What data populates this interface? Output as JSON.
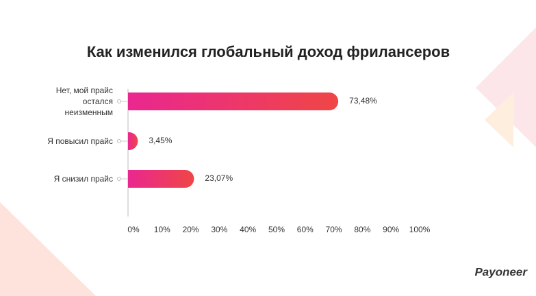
{
  "chart_data": {
    "type": "hbar",
    "title": "Как изменился глобальный доход фрилансеров",
    "categories": [
      "Нет, мой прайс остался неизменным",
      "Я повысил прайс",
      "Я снизил прайс"
    ],
    "values": [
      73.48,
      3.45,
      23.07
    ],
    "value_labels": [
      "73,48%",
      "3,45%",
      "23,07%"
    ],
    "colors": [
      "#ea2790",
      "#ef4646"
    ],
    "xlim": [
      0,
      100
    ],
    "xticks": [
      {
        "value": 0,
        "label": "0%"
      },
      {
        "value": 10,
        "label": "10%"
      },
      {
        "value": 20,
        "label": "20%"
      },
      {
        "value": 30,
        "label": "30%"
      },
      {
        "value": 40,
        "label": "40%"
      },
      {
        "value": 50,
        "label": "50%"
      },
      {
        "value": 60,
        "label": "60%"
      },
      {
        "value": 70,
        "label": "70%"
      },
      {
        "value": 80,
        "label": "80%"
      },
      {
        "value": 90,
        "label": "90%"
      },
      {
        "value": 100,
        "label": "100%"
      }
    ]
  },
  "logo": "Payoneer"
}
